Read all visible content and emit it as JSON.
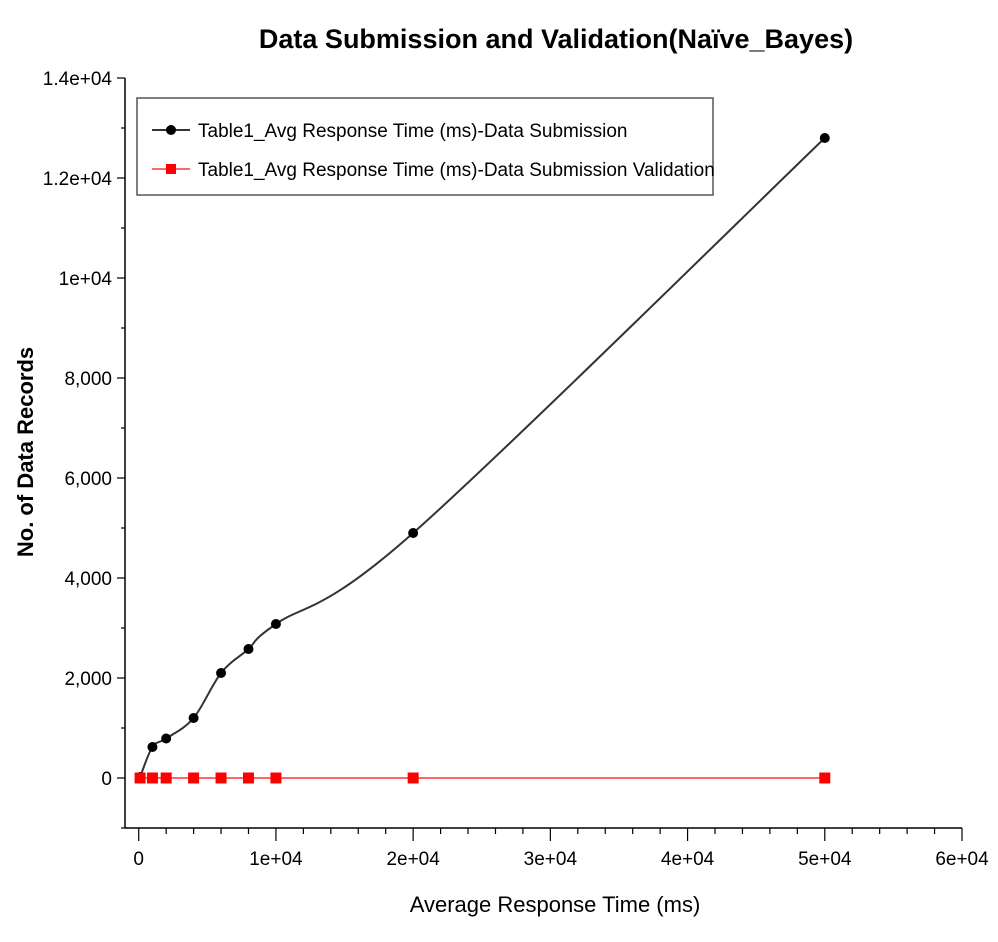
{
  "chart_data": {
    "type": "line",
    "title": "Data Submission and Validation(Naïve_Bayes)",
    "xlabel": "Average Response Time (ms)",
    "ylabel": "No. of Data Records",
    "xlim": [
      -1000,
      60000
    ],
    "ylim": [
      -1000,
      14000
    ],
    "x_ticks": [
      {
        "value": 0,
        "label": "0"
      },
      {
        "value": 10000,
        "label": "1e+04"
      },
      {
        "value": 20000,
        "label": "2e+04"
      },
      {
        "value": 30000,
        "label": "3e+04"
      },
      {
        "value": 40000,
        "label": "4e+04"
      },
      {
        "value": 50000,
        "label": "5e+04"
      },
      {
        "value": 60000,
        "label": "6e+04"
      }
    ],
    "y_ticks": [
      {
        "value": 0,
        "label": "0"
      },
      {
        "value": 2000,
        "label": "2,000"
      },
      {
        "value": 4000,
        "label": "4,000"
      },
      {
        "value": 6000,
        "label": "6,000"
      },
      {
        "value": 8000,
        "label": "8,000"
      },
      {
        "value": 10000,
        "label": "1e+04"
      },
      {
        "value": 12000,
        "label": "1.2e+04"
      },
      {
        "value": 14000,
        "label": "1.4e+04"
      }
    ],
    "grid": false,
    "legend_position": "top-left",
    "series": [
      {
        "name": "Table1_Avg Response Time (ms)-Data Submission",
        "color": "#000000",
        "line_color": "#333333",
        "marker": "circle",
        "x": [
          100,
          1000,
          2000,
          4000,
          6000,
          8000,
          10000,
          20000,
          50000
        ],
        "y": [
          20,
          620,
          790,
          1200,
          2100,
          2580,
          3080,
          4900,
          12800
        ]
      },
      {
        "name": "Table1_Avg Response Time (ms)-Data Submission Validation",
        "color": "#ff0000",
        "line_color": "#ff6666",
        "marker": "square",
        "x": [
          100,
          1000,
          2000,
          4000,
          6000,
          8000,
          10000,
          20000,
          50000
        ],
        "y": [
          0,
          0,
          0,
          0,
          0,
          0,
          0,
          0,
          0
        ]
      }
    ]
  }
}
